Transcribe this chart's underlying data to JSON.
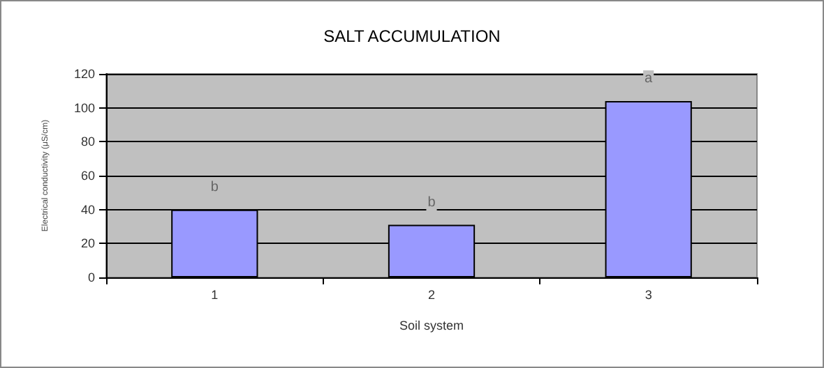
{
  "chart_data": {
    "type": "bar",
    "title": "SALT ACCUMULATION",
    "xlabel": "Soil system",
    "ylabel": "Electrical conductivity (μS/cm)",
    "categories": [
      "1",
      "2",
      "3"
    ],
    "values": [
      40,
      31,
      104
    ],
    "value_labels": [
      "b",
      "b",
      "a"
    ],
    "color": "#9999ff",
    "ylim": [
      0,
      120
    ],
    "yticks": [
      0,
      20,
      40,
      60,
      80,
      100,
      120
    ],
    "grid": "y"
  }
}
